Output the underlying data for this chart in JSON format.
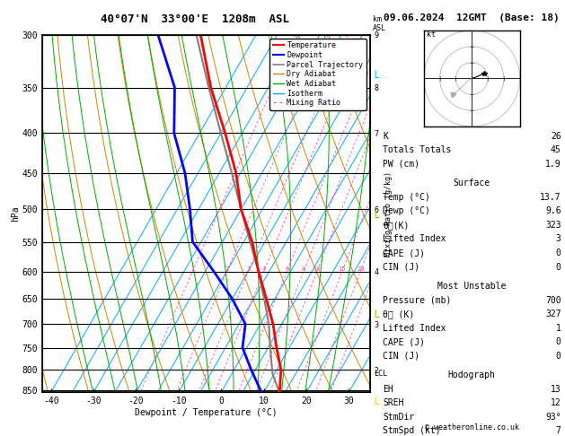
{
  "title_left": "40°07'N  33°00'E  1208m  ASL",
  "date_title": "09.06.2024  12GMT  (Base: 18)",
  "xlabel": "Dewpoint / Temperature (°C)",
  "ylabel_left": "hPa",
  "pressure_levels": [
    300,
    350,
    400,
    450,
    500,
    550,
    600,
    650,
    700,
    750,
    800,
    850
  ],
  "pressure_min": 300,
  "pressure_max": 855,
  "temp_min": -42,
  "temp_max": 35,
  "lcl_pressure": 810,
  "temp_profile": {
    "pressure": [
      855,
      850,
      800,
      750,
      700,
      650,
      600,
      550,
      500,
      450,
      400,
      350,
      300
    ],
    "temp": [
      13.7,
      13.5,
      11.0,
      7.0,
      3.0,
      -2.0,
      -7.5,
      -13.0,
      -20.0,
      -26.0,
      -34.0,
      -43.5,
      -53.0
    ]
  },
  "dewp_profile": {
    "pressure": [
      855,
      850,
      800,
      750,
      700,
      650,
      600,
      550,
      500,
      450,
      400,
      350,
      300
    ],
    "temp": [
      9.6,
      9.0,
      4.0,
      -1.0,
      -3.5,
      -10.0,
      -18.0,
      -27.0,
      -32.0,
      -38.0,
      -46.0,
      -52.0,
      -63.0
    ]
  },
  "parcel_profile": {
    "pressure": [
      855,
      810,
      750,
      700,
      650,
      600,
      550,
      500,
      450,
      400,
      350,
      300
    ],
    "temp": [
      13.7,
      9.6,
      5.5,
      2.0,
      -2.5,
      -7.5,
      -13.5,
      -20.0,
      -27.0,
      -35.0,
      -44.0,
      -54.0
    ]
  },
  "temp_color": "#ff0000",
  "dewp_color": "#0000ff",
  "parcel_color": "#808080",
  "dry_adiabat_color": "#cc8800",
  "wet_adiabat_color": "#00aa00",
  "isotherm_color": "#00aaff",
  "mixing_ratio_color": "#ff44aa",
  "isotherm_temps": [
    -40,
    -35,
    -30,
    -25,
    -20,
    -15,
    -10,
    -5,
    0,
    5,
    10,
    15,
    20,
    25,
    30,
    35
  ],
  "mixing_ratio_values": [
    1,
    2,
    3,
    4,
    6,
    8,
    10,
    15,
    20,
    25
  ],
  "dry_adiabat_temps": [
    -30,
    -20,
    -10,
    0,
    10,
    20,
    30,
    40,
    50,
    60,
    70,
    80,
    100,
    120
  ],
  "wet_adiabat_temps": [
    -20,
    -15,
    -10,
    -5,
    0,
    5,
    10,
    15,
    20,
    25,
    30
  ],
  "km_ticks_p": [
    300,
    350,
    400,
    500,
    600,
    700,
    800
  ],
  "km_ticks_val": [
    9,
    8,
    7,
    6,
    4,
    3,
    2
  ],
  "info_K": 26,
  "info_TT": 45,
  "info_PW": 1.9,
  "info_surf_temp": 13.7,
  "info_surf_dewp": 9.6,
  "info_surf_thetae": 323,
  "info_surf_li": 3,
  "info_surf_cape": 0,
  "info_surf_cin": 0,
  "info_mu_pres": 700,
  "info_mu_thetae": 327,
  "info_mu_li": 1,
  "info_mu_cape": 0,
  "info_mu_cin": 0,
  "info_eh": 13,
  "info_sreh": 12,
  "info_stmdir": "93°",
  "info_stmspd": 7,
  "copyright": "© weatheronline.co.uk"
}
